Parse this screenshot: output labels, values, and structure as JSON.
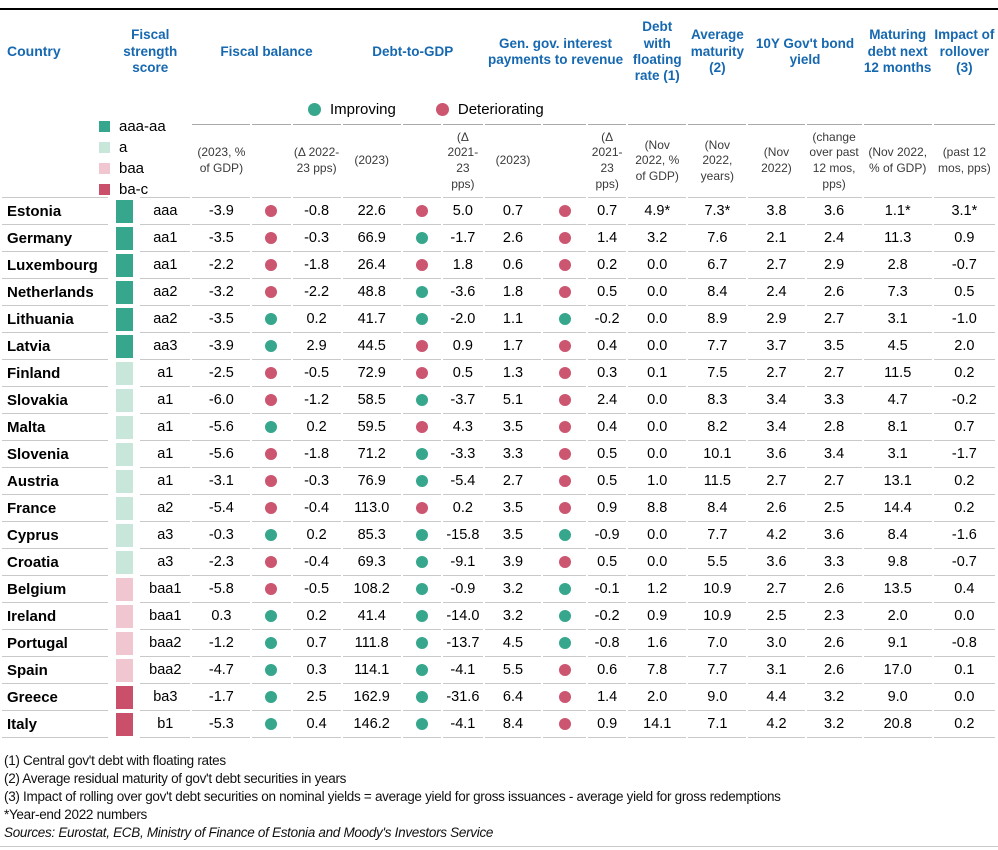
{
  "colors": {
    "header_blue": "#1668b0",
    "row_border": "#c9c9c9",
    "top_rule": "#000000"
  },
  "header": {
    "country": "Country",
    "groups": [
      {
        "label": "Fiscal strength score"
      },
      {
        "label": "Fiscal balance"
      },
      {
        "label": "Debt-to-GDP"
      },
      {
        "label": "Gen. gov. interest payments to revenue"
      },
      {
        "label": "Debt with floating rate (1)"
      },
      {
        "label": "Average maturity (2)"
      },
      {
        "label": "10Y Gov't bond yield"
      },
      {
        "label": "Maturing debt next 12 months"
      },
      {
        "label": "Impact of rollover (3)"
      }
    ],
    "units": {
      "fb_value": "(2023, % of GDP)",
      "fb_delta": "(Δ 2022-23 pps)",
      "debt_value": "(2023)",
      "debt_delta": "(Δ 2021-23 pps)",
      "int_value": "(2023)",
      "int_delta": "(Δ 2021-23 pps)",
      "floating": "(Nov 2022, % of GDP)",
      "maturity": "(Nov 2022, years)",
      "yield": "(Nov 2022)",
      "yield_change": "(change over past 12 mos, pps)",
      "maturing": "(Nov 2022, % of GDP)",
      "rollover": "(past 12 mos, pps)"
    }
  },
  "legend": {
    "trend": [
      {
        "key": "improving",
        "label": "Improving",
        "color": "#36a78d"
      },
      {
        "key": "deteriorating",
        "label": "Deteriorating",
        "color": "#cc5570"
      }
    ],
    "ratings": [
      {
        "label": "aaa-aa",
        "color": "#36a78d"
      },
      {
        "label": "a",
        "color": "#c9e6da"
      },
      {
        "label": "baa",
        "color": "#f0c6d0"
      },
      {
        "label": "ba-c",
        "color": "#c94f6b"
      }
    ]
  },
  "chart_data": {
    "type": "table",
    "columns": [
      "Country",
      "Fiscal strength group",
      "Fiscal strength score",
      "Fiscal balance (2023, % of GDP)",
      "Fiscal balance trend",
      "Fiscal balance (Δ 2022-23 pps)",
      "Debt-to-GDP (2023)",
      "Debt-to-GDP trend",
      "Debt-to-GDP (Δ 2021-23 pps)",
      "Gen. gov. interest payments to revenue (2023)",
      "Interest payments trend",
      "Gen. gov. interest payments to revenue (Δ 2021-23 pps)",
      "Debt with floating rate (Nov 2022, % of GDP)",
      "Average maturity (Nov 2022, years)",
      "10Y Gov't bond yield (Nov 2022)",
      "10Y Gov't bond yield (change over past 12 mos, pps)",
      "Maturing debt next 12 months (Nov 2022, % of GDP)",
      "Impact of rollover (past 12 mos, pps)"
    ],
    "rows": [
      [
        "Estonia",
        "aaa-aa",
        "aaa",
        "-3.9",
        "deteriorating",
        "-0.8",
        "22.6",
        "deteriorating",
        "5.0",
        "0.7",
        "deteriorating",
        "0.7",
        "4.9*",
        "7.3*",
        "3.8",
        "3.6",
        "1.1*",
        "3.1*"
      ],
      [
        "Germany",
        "aaa-aa",
        "aa1",
        "-3.5",
        "deteriorating",
        "-0.3",
        "66.9",
        "improving",
        "-1.7",
        "2.6",
        "deteriorating",
        "1.4",
        "3.2",
        "7.6",
        "2.1",
        "2.4",
        "11.3",
        "0.9"
      ],
      [
        "Luxembourg",
        "aaa-aa",
        "aa1",
        "-2.2",
        "deteriorating",
        "-1.8",
        "26.4",
        "deteriorating",
        "1.8",
        "0.6",
        "deteriorating",
        "0.2",
        "0.0",
        "6.7",
        "2.7",
        "2.9",
        "2.8",
        "-0.7"
      ],
      [
        "Netherlands",
        "aaa-aa",
        "aa2",
        "-3.2",
        "deteriorating",
        "-2.2",
        "48.8",
        "improving",
        "-3.6",
        "1.8",
        "deteriorating",
        "0.5",
        "0.0",
        "8.4",
        "2.4",
        "2.6",
        "7.3",
        "0.5"
      ],
      [
        "Lithuania",
        "aaa-aa",
        "aa2",
        "-3.5",
        "improving",
        "0.2",
        "41.7",
        "improving",
        "-2.0",
        "1.1",
        "improving",
        "-0.2",
        "0.0",
        "8.9",
        "2.9",
        "2.7",
        "3.1",
        "-1.0"
      ],
      [
        "Latvia",
        "aaa-aa",
        "aa3",
        "-3.9",
        "improving",
        "2.9",
        "44.5",
        "deteriorating",
        "0.9",
        "1.7",
        "deteriorating",
        "0.4",
        "0.0",
        "7.7",
        "3.7",
        "3.5",
        "4.5",
        "2.0"
      ],
      [
        "Finland",
        "a",
        "a1",
        "-2.5",
        "deteriorating",
        "-0.5",
        "72.9",
        "deteriorating",
        "0.5",
        "1.3",
        "deteriorating",
        "0.3",
        "0.1",
        "7.5",
        "2.7",
        "2.7",
        "11.5",
        "0.2"
      ],
      [
        "Slovakia",
        "a",
        "a1",
        "-6.0",
        "deteriorating",
        "-1.2",
        "58.5",
        "improving",
        "-3.7",
        "5.1",
        "deteriorating",
        "2.4",
        "0.0",
        "8.3",
        "3.4",
        "3.3",
        "4.7",
        "-0.2"
      ],
      [
        "Malta",
        "a",
        "a1",
        "-5.6",
        "improving",
        "0.2",
        "59.5",
        "deteriorating",
        "4.3",
        "3.5",
        "deteriorating",
        "0.4",
        "0.0",
        "8.2",
        "3.4",
        "2.8",
        "8.1",
        "0.7"
      ],
      [
        "Slovenia",
        "a",
        "a1",
        "-5.6",
        "deteriorating",
        "-1.8",
        "71.2",
        "improving",
        "-3.3",
        "3.3",
        "deteriorating",
        "0.5",
        "0.0",
        "10.1",
        "3.6",
        "3.4",
        "3.1",
        "-1.7"
      ],
      [
        "Austria",
        "a",
        "a1",
        "-3.1",
        "deteriorating",
        "-0.3",
        "76.9",
        "improving",
        "-5.4",
        "2.7",
        "deteriorating",
        "0.5",
        "1.0",
        "11.5",
        "2.7",
        "2.7",
        "13.1",
        "0.2"
      ],
      [
        "France",
        "a",
        "a2",
        "-5.4",
        "deteriorating",
        "-0.4",
        "113.0",
        "deteriorating",
        "0.2",
        "3.5",
        "deteriorating",
        "0.9",
        "8.8",
        "8.4",
        "2.6",
        "2.5",
        "14.4",
        "0.2"
      ],
      [
        "Cyprus",
        "a",
        "a3",
        "-0.3",
        "improving",
        "0.2",
        "85.3",
        "improving",
        "-15.8",
        "3.5",
        "improving",
        "-0.9",
        "0.0",
        "7.7",
        "4.2",
        "3.6",
        "8.4",
        "-1.6"
      ],
      [
        "Croatia",
        "a",
        "a3",
        "-2.3",
        "deteriorating",
        "-0.4",
        "69.3",
        "improving",
        "-9.1",
        "3.9",
        "deteriorating",
        "0.5",
        "0.0",
        "5.5",
        "3.6",
        "3.3",
        "9.8",
        "-0.7"
      ],
      [
        "Belgium",
        "baa",
        "baa1",
        "-5.8",
        "deteriorating",
        "-0.5",
        "108.2",
        "improving",
        "-0.9",
        "3.2",
        "improving",
        "-0.1",
        "1.2",
        "10.9",
        "2.7",
        "2.6",
        "13.5",
        "0.4"
      ],
      [
        "Ireland",
        "baa",
        "baa1",
        "0.3",
        "improving",
        "0.2",
        "41.4",
        "improving",
        "-14.0",
        "3.2",
        "improving",
        "-0.2",
        "0.9",
        "10.9",
        "2.5",
        "2.3",
        "2.0",
        "0.0"
      ],
      [
        "Portugal",
        "baa",
        "baa2",
        "-1.2",
        "improving",
        "0.7",
        "111.8",
        "improving",
        "-13.7",
        "4.5",
        "improving",
        "-0.8",
        "1.6",
        "7.0",
        "3.0",
        "2.6",
        "9.1",
        "-0.8"
      ],
      [
        "Spain",
        "baa",
        "baa2",
        "-4.7",
        "improving",
        "0.3",
        "114.1",
        "improving",
        "-4.1",
        "5.5",
        "deteriorating",
        "0.6",
        "7.8",
        "7.7",
        "3.1",
        "2.6",
        "17.0",
        "0.1"
      ],
      [
        "Greece",
        "ba-c",
        "ba3",
        "-1.7",
        "improving",
        "2.5",
        "162.9",
        "improving",
        "-31.6",
        "6.4",
        "deteriorating",
        "1.4",
        "2.0",
        "9.0",
        "4.4",
        "3.2",
        "9.0",
        "0.0"
      ],
      [
        "Italy",
        "ba-c",
        "b1",
        "-5.3",
        "improving",
        "0.4",
        "146.2",
        "improving",
        "-4.1",
        "8.4",
        "deteriorating",
        "0.9",
        "14.1",
        "7.1",
        "4.2",
        "3.2",
        "20.8",
        "0.2"
      ]
    ]
  },
  "footnotes": [
    "(1) Central gov't debt with floating rates",
    "(2) Average residual maturity of gov't debt securities in years",
    "(3) Impact of rolling over gov't debt securities on nominal yields = average yield for gross issuances - average yield for gross redemptions",
    "*Year-end 2022 numbers"
  ],
  "sources": "Sources: Eurostat, ECB, Ministry of Finance of Estonia and Moody's Investors Service"
}
